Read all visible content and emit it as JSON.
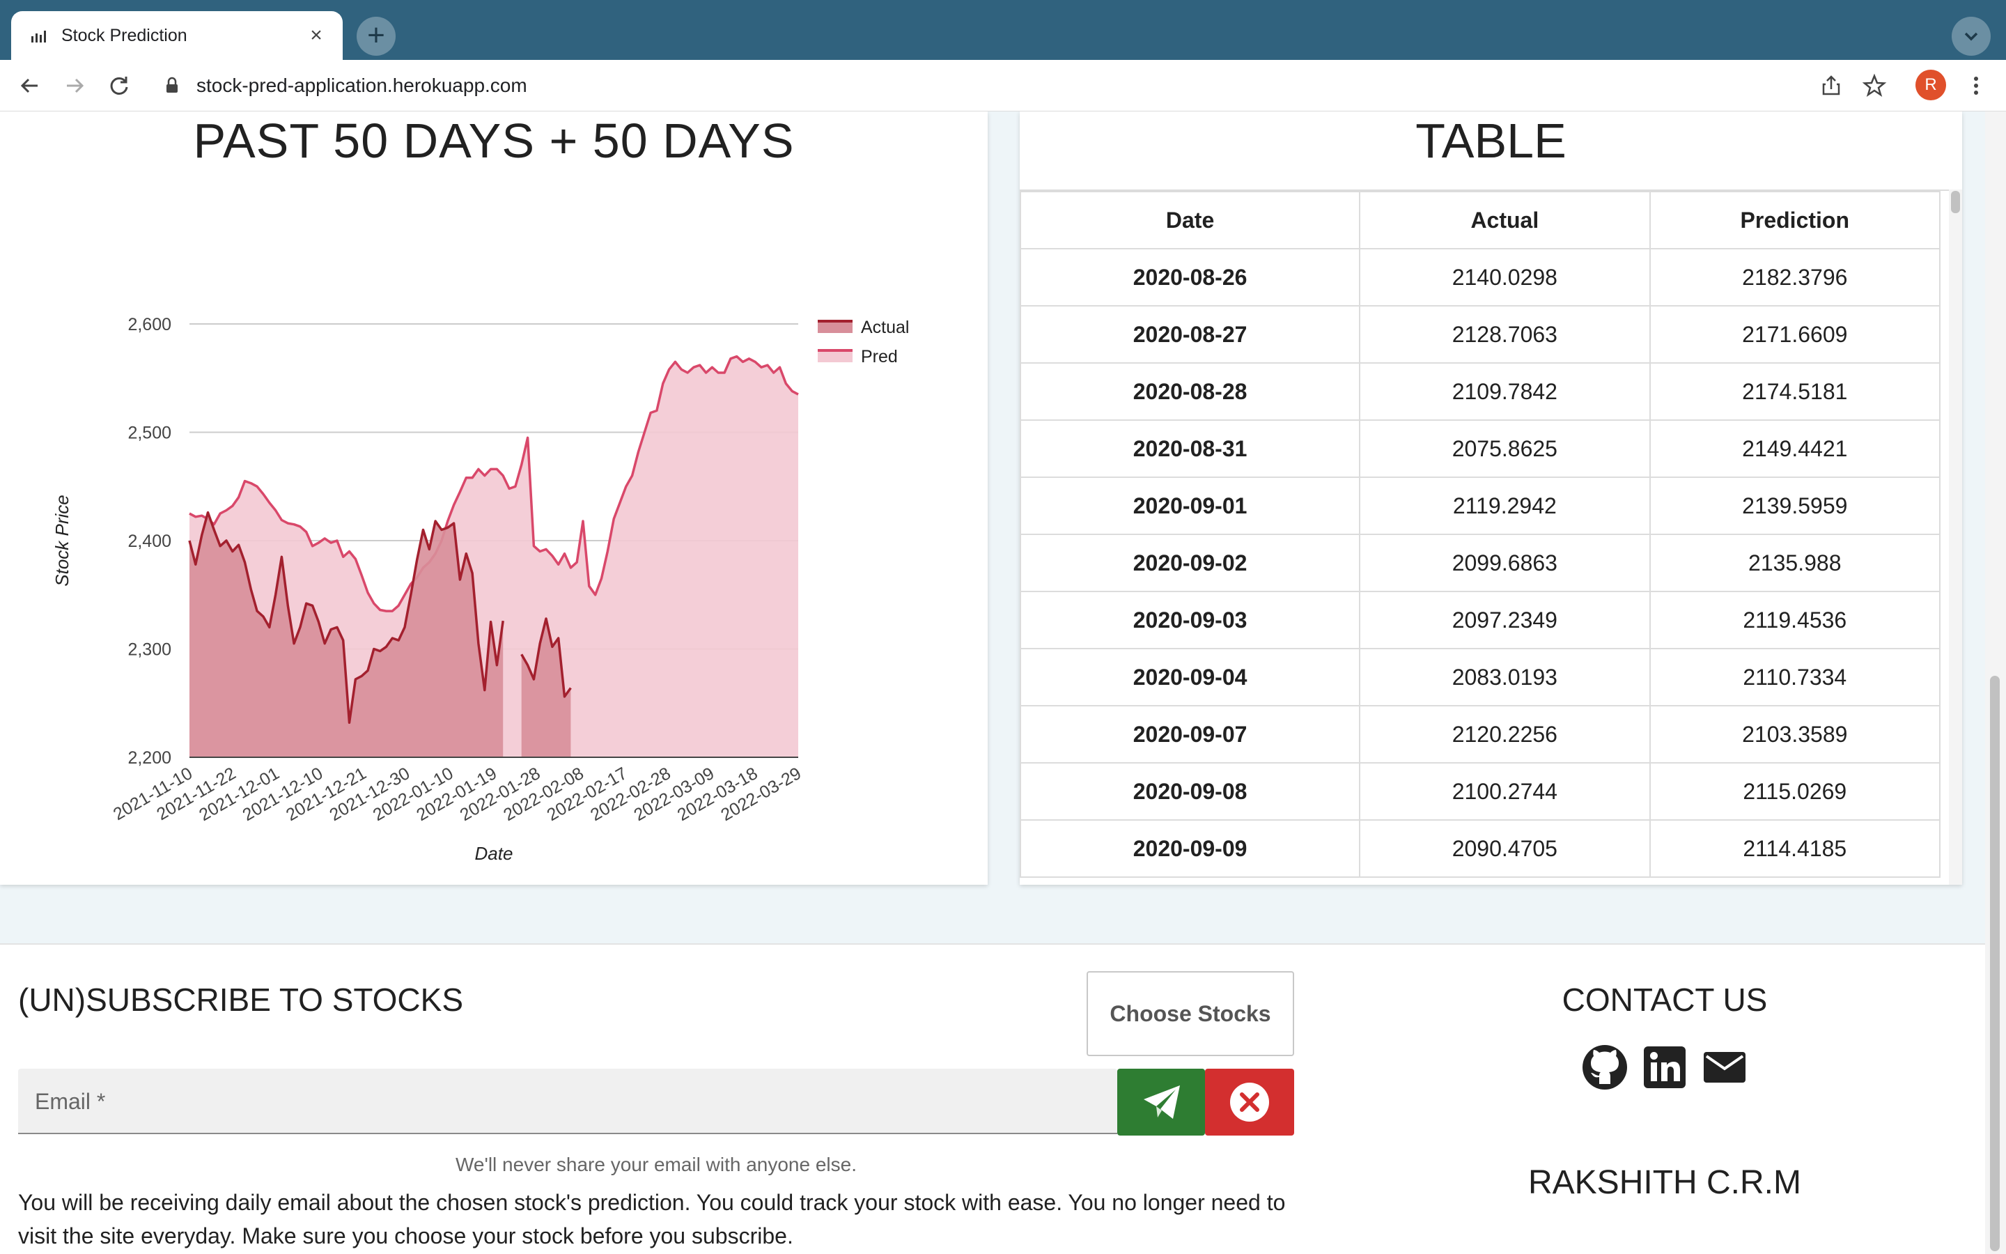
{
  "browser": {
    "tab_title": "Stock Prediction",
    "url": "stock-pred-application.herokuapp.com",
    "profile_initial": "R"
  },
  "chart_card": {
    "title": "PAST 50 DAYS + 50 DAYS"
  },
  "table_card": {
    "title": "TABLE",
    "columns": [
      "Date",
      "Actual",
      "Prediction"
    ],
    "rows": [
      [
        "2020-08-26",
        "2140.0298",
        "2182.3796"
      ],
      [
        "2020-08-27",
        "2128.7063",
        "2171.6609"
      ],
      [
        "2020-08-28",
        "2109.7842",
        "2174.5181"
      ],
      [
        "2020-08-31",
        "2075.8625",
        "2149.4421"
      ],
      [
        "2020-09-01",
        "2119.2942",
        "2139.5959"
      ],
      [
        "2020-09-02",
        "2099.6863",
        "2135.988"
      ],
      [
        "2020-09-03",
        "2097.2349",
        "2119.4536"
      ],
      [
        "2020-09-04",
        "2083.0193",
        "2110.7334"
      ],
      [
        "2020-09-07",
        "2120.2256",
        "2103.3589"
      ],
      [
        "2020-09-08",
        "2100.2744",
        "2115.0269"
      ],
      [
        "2020-09-09",
        "2090.4705",
        "2114.4185"
      ]
    ]
  },
  "subscribe": {
    "title": "(UN)SUBSCRIBE TO STOCKS",
    "choose_button": "Choose Stocks",
    "email_label": "Email *",
    "helper": "We'll never share your email with anyone else.",
    "info": "You will be receiving daily email about the chosen stock's prediction. You could track your stock with ease. You no longer need to visit the site everyday. Make sure you choose your stock before you subscribe."
  },
  "contact": {
    "title": "CONTACT US",
    "author": "RAKSHITH C.R.M",
    "icons": [
      "github-icon",
      "linkedin-icon",
      "mail-icon"
    ]
  },
  "chart_data": {
    "type": "area",
    "title": "PAST 50 DAYS + 50 DAYS",
    "xlabel": "Date",
    "ylabel": "Stock Price",
    "ylim": [
      2200,
      2600
    ],
    "yticks": [
      "2,200",
      "2,300",
      "2,400",
      "2,500",
      "2,600"
    ],
    "xticks": [
      "2021-11-10",
      "2021-11-22",
      "2021-12-01",
      "2021-12-10",
      "2021-12-21",
      "2021-12-30",
      "2022-01-10",
      "2022-01-19",
      "2022-01-28",
      "2022-02-08",
      "2022-02-17",
      "2022-02-28",
      "2022-03-09",
      "2022-03-18",
      "2022-03-29"
    ],
    "legend_position": "right",
    "colors": {
      "actual_line": "#a3202e",
      "actual_fill": "#d88f9a",
      "pred_line": "#d9486a",
      "pred_fill": "#f3c9d3"
    },
    "series": [
      {
        "name": "Actual",
        "values": [
          2400,
          2378,
          2405,
          2426,
          2410,
          2395,
          2400,
          2390,
          2396,
          2380,
          2355,
          2335,
          2330,
          2320,
          2350,
          2385,
          2340,
          2305,
          2320,
          2342,
          2340,
          2325,
          2305,
          2318,
          2320,
          2308,
          2232,
          2272,
          2275,
          2280,
          2300,
          2298,
          2302,
          2310,
          2308,
          2320,
          2350,
          2382,
          2410,
          2392,
          2418,
          2410,
          2412,
          2416,
          2364,
          2388,
          2370,
          2305,
          2262,
          2325,
          2285,
          2326,
          null,
          null,
          2295,
          2285,
          2272,
          2305,
          2328,
          2302,
          2310,
          2256,
          2264
        ]
      },
      {
        "name": "Pred",
        "values": [
          2425,
          2422,
          2423,
          2420,
          2415,
          2425,
          2428,
          2432,
          2440,
          2455,
          2453,
          2450,
          2443,
          2435,
          2428,
          2419,
          2416,
          2415,
          2413,
          2408,
          2395,
          2398,
          2402,
          2398,
          2400,
          2385,
          2390,
          2383,
          2368,
          2352,
          2342,
          2336,
          2335,
          2335,
          2340,
          2350,
          2360,
          2366,
          2375,
          2380,
          2388,
          2400,
          2418,
          2433,
          2445,
          2458,
          2458,
          2466,
          2460,
          2466,
          2466,
          2460,
          2448,
          2450,
          2470,
          2495,
          2395,
          2390,
          2392,
          2386,
          2378,
          2388,
          2375,
          2380,
          2418,
          2358,
          2350,
          2365,
          2390,
          2420,
          2435,
          2450,
          2460,
          2482,
          2500,
          2518,
          2520,
          2545,
          2558,
          2565,
          2558,
          2555,
          2560,
          2562,
          2555,
          2560,
          2555,
          2555,
          2568,
          2570,
          2565,
          2568,
          2565,
          2560,
          2562,
          2555,
          2560,
          2545,
          2538,
          2535
        ]
      }
    ]
  }
}
